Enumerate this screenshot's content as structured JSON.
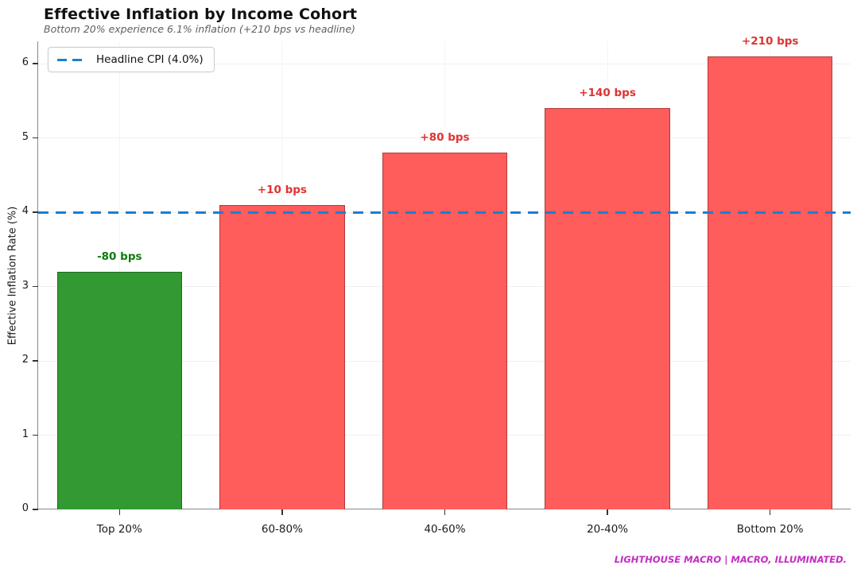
{
  "header": {
    "title": "Effective Inflation by Income Cohort",
    "subtitle": "Bottom 20% experience 6.1% inflation (+210 bps vs headline)"
  },
  "legend": {
    "label": "Headline CPI (4.0%)"
  },
  "footer": {
    "branding": "LIGHTHOUSE MACRO | MACRO, ILLUMINATED."
  },
  "colors": {
    "headline_line": "#1b7ed3",
    "positive_bar": "#ff5c5c",
    "positive_bar_edge": "#b03a3a",
    "positive_label": "#e03232",
    "negative_bar": "#339933",
    "negative_bar_edge": "#1e6b1e",
    "negative_label": "#0e7c0e",
    "branding": "#c32cc3"
  },
  "chart_data": {
    "type": "bar",
    "title": "Effective Inflation by Income Cohort",
    "subtitle": "Bottom 20% experience 6.1% inflation (+210 bps vs headline)",
    "categories": [
      "Top 20%",
      "60-80%",
      "40-60%",
      "20-40%",
      "Bottom 20%"
    ],
    "values": [
      3.2,
      4.1,
      4.8,
      5.4,
      6.1
    ],
    "bar_labels": [
      "-80 bps",
      "+10 bps",
      "+80 bps",
      "+140 bps",
      "+210 bps"
    ],
    "bar_colors": [
      "#339933",
      "#ff5c5c",
      "#ff5c5c",
      "#ff5c5c",
      "#ff5c5c"
    ],
    "bar_edge_colors": [
      "#1e6b1e",
      "#b03a3a",
      "#b03a3a",
      "#b03a3a",
      "#b03a3a"
    ],
    "bar_label_colors": [
      "#0e7c0e",
      "#e03232",
      "#e03232",
      "#e03232",
      "#e03232"
    ],
    "reference_line": {
      "value": 4.0,
      "label": "Headline CPI (4.0%)",
      "color": "#1b7ed3",
      "style": "dashed"
    },
    "xlabel": "",
    "ylabel": "Effective Inflation Rate (%)",
    "ylim": [
      0,
      6.3
    ],
    "yticks": [
      0,
      1,
      2,
      3,
      4,
      5,
      6
    ],
    "grid": true,
    "legend_position": "upper left"
  }
}
